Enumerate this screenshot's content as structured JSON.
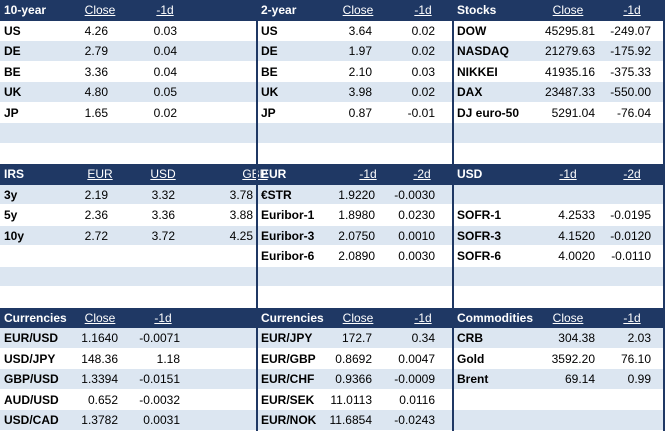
{
  "sections": [
    {
      "groups": [
        {
          "headers": [
            "10-year",
            "Close",
            "-1d"
          ],
          "rows": [
            [
              "US",
              "4.26",
              "0.03"
            ],
            [
              "DE",
              "2.79",
              "0.04"
            ],
            [
              "BE",
              "3.36",
              "0.04"
            ],
            [
              "UK",
              "4.80",
              "0.05"
            ],
            [
              "JP",
              "1.65",
              "0.02"
            ]
          ]
        },
        {
          "headers": [
            "2-year",
            "Close",
            "-1d"
          ],
          "rows": [
            [
              "US",
              "3.64",
              "0.02"
            ],
            [
              "DE",
              "1.97",
              "0.02"
            ],
            [
              "BE",
              "2.10",
              "0.03"
            ],
            [
              "UK",
              "3.98",
              "0.02"
            ],
            [
              "JP",
              "0.87",
              "-0.01"
            ]
          ]
        },
        {
          "headers": [
            "Stocks",
            "Close",
            "-1d"
          ],
          "rows": [
            [
              "DOW",
              "45295.81",
              "-249.07"
            ],
            [
              "NASDAQ",
              "21279.63",
              "-175.92"
            ],
            [
              "NIKKEI",
              "41935.16",
              "-375.33"
            ],
            [
              "DAX",
              "23487.33",
              "-550.00"
            ],
            [
              "DJ euro-50",
              "5291.04",
              "-76.04"
            ]
          ]
        }
      ]
    },
    {
      "groups": [
        {
          "headers": [
            "IRS",
            "EUR",
            "USD",
            "GBP"
          ],
          "rows": [
            [
              "3y",
              "2.19",
              "3.32",
              "3.78"
            ],
            [
              "5y",
              "2.36",
              "3.36",
              "3.88"
            ],
            [
              "10y",
              "2.72",
              "3.72",
              "4.25"
            ]
          ]
        },
        {
          "headers": [
            "EUR",
            "-1d",
            "-2d"
          ],
          "rows": [
            [
              "€STR",
              "1.9220",
              "-0.0030"
            ],
            [
              "Euribor-1",
              "1.8980",
              "0.0230"
            ],
            [
              "Euribor-3",
              "2.0750",
              "0.0010"
            ],
            [
              "Euribor-6",
              "2.0890",
              "0.0030"
            ]
          ]
        },
        {
          "headers": [
            "USD",
            "-1d",
            "-2d"
          ],
          "rows": [
            null,
            [
              "SOFR-1",
              "4.2533",
              "-0.0195"
            ],
            [
              "SOFR-3",
              "4.1520",
              "-0.0120"
            ],
            [
              "SOFR-6",
              "4.0020",
              "-0.0110"
            ]
          ]
        }
      ]
    },
    {
      "groups": [
        {
          "headers": [
            "Currencies",
            "Close",
            "-1d"
          ],
          "rows": [
            [
              "EUR/USD",
              "1.1640",
              "-0.0071"
            ],
            [
              "USD/JPY",
              "148.36",
              "1.18"
            ],
            [
              "GBP/USD",
              "1.3394",
              "-0.0151"
            ],
            [
              "AUD/USD",
              "0.652",
              "-0.0032"
            ],
            [
              "USD/CAD",
              "1.3782",
              "0.0031"
            ]
          ]
        },
        {
          "headers": [
            "Currencies",
            "Close",
            "-1d"
          ],
          "rows": [
            [
              "EUR/JPY",
              "172.7",
              "0.34"
            ],
            [
              "EUR/GBP",
              "0.8692",
              "0.0047"
            ],
            [
              "EUR/CHF",
              "0.9366",
              "-0.0009"
            ],
            [
              "EUR/SEK",
              "11.0113",
              "0.0116"
            ],
            [
              "EUR/NOK",
              "11.6854",
              "-0.0243"
            ]
          ]
        },
        {
          "headers": [
            "Commodities",
            "Close",
            "-1d"
          ],
          "rows": [
            [
              "CRB",
              "304.38",
              "2.03"
            ],
            [
              "Gold",
              "3592.20",
              "76.10"
            ],
            [
              "Brent",
              "69.14",
              "0.99"
            ]
          ]
        }
      ]
    }
  ]
}
